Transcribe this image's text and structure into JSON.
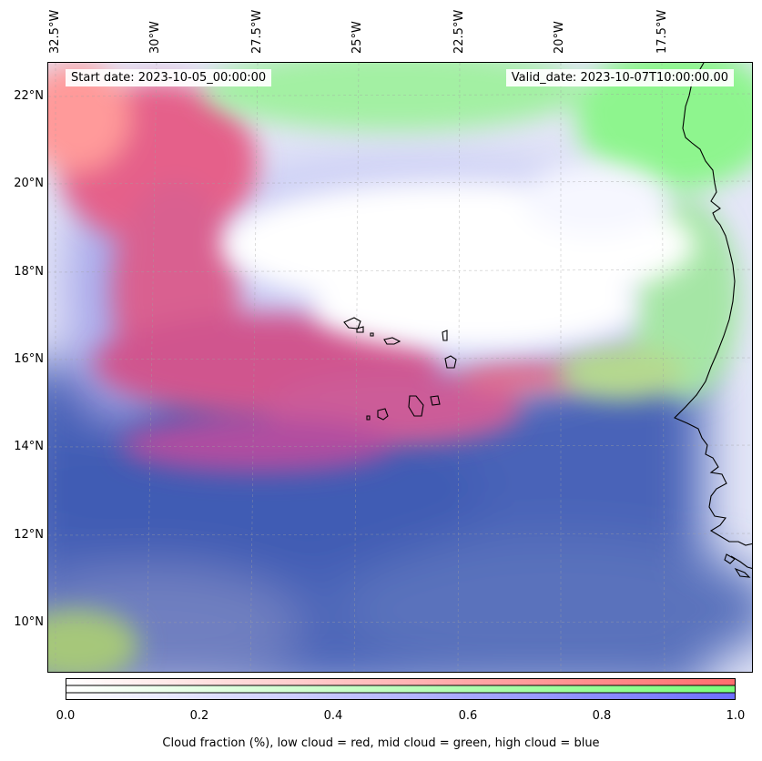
{
  "map": {
    "start_date": "Start date: 2023-10-05_00:00:00",
    "valid_date": "Valid_date: 2023-10-07T10:00:00.00",
    "lon_labels": [
      "32.5°W",
      "30°W",
      "27.5°W",
      "25°W",
      "22.5°W",
      "20°W",
      "17.5°W"
    ],
    "lat_labels": [
      "22°N",
      "20°N",
      "18°N",
      "16°N",
      "14°N",
      "12°N",
      "10°N"
    ],
    "colors": {
      "low_cloud": "#ff6e6e",
      "mid_cloud": "#7aff7a",
      "high_cloud": "#6e6eff"
    }
  },
  "colorbar": {
    "ticks": [
      "0.0",
      "0.2",
      "0.4",
      "0.6",
      "0.8",
      "1.0"
    ],
    "label": "Cloud fraction (%), low cloud = red, mid cloud = green, high cloud = blue"
  }
}
